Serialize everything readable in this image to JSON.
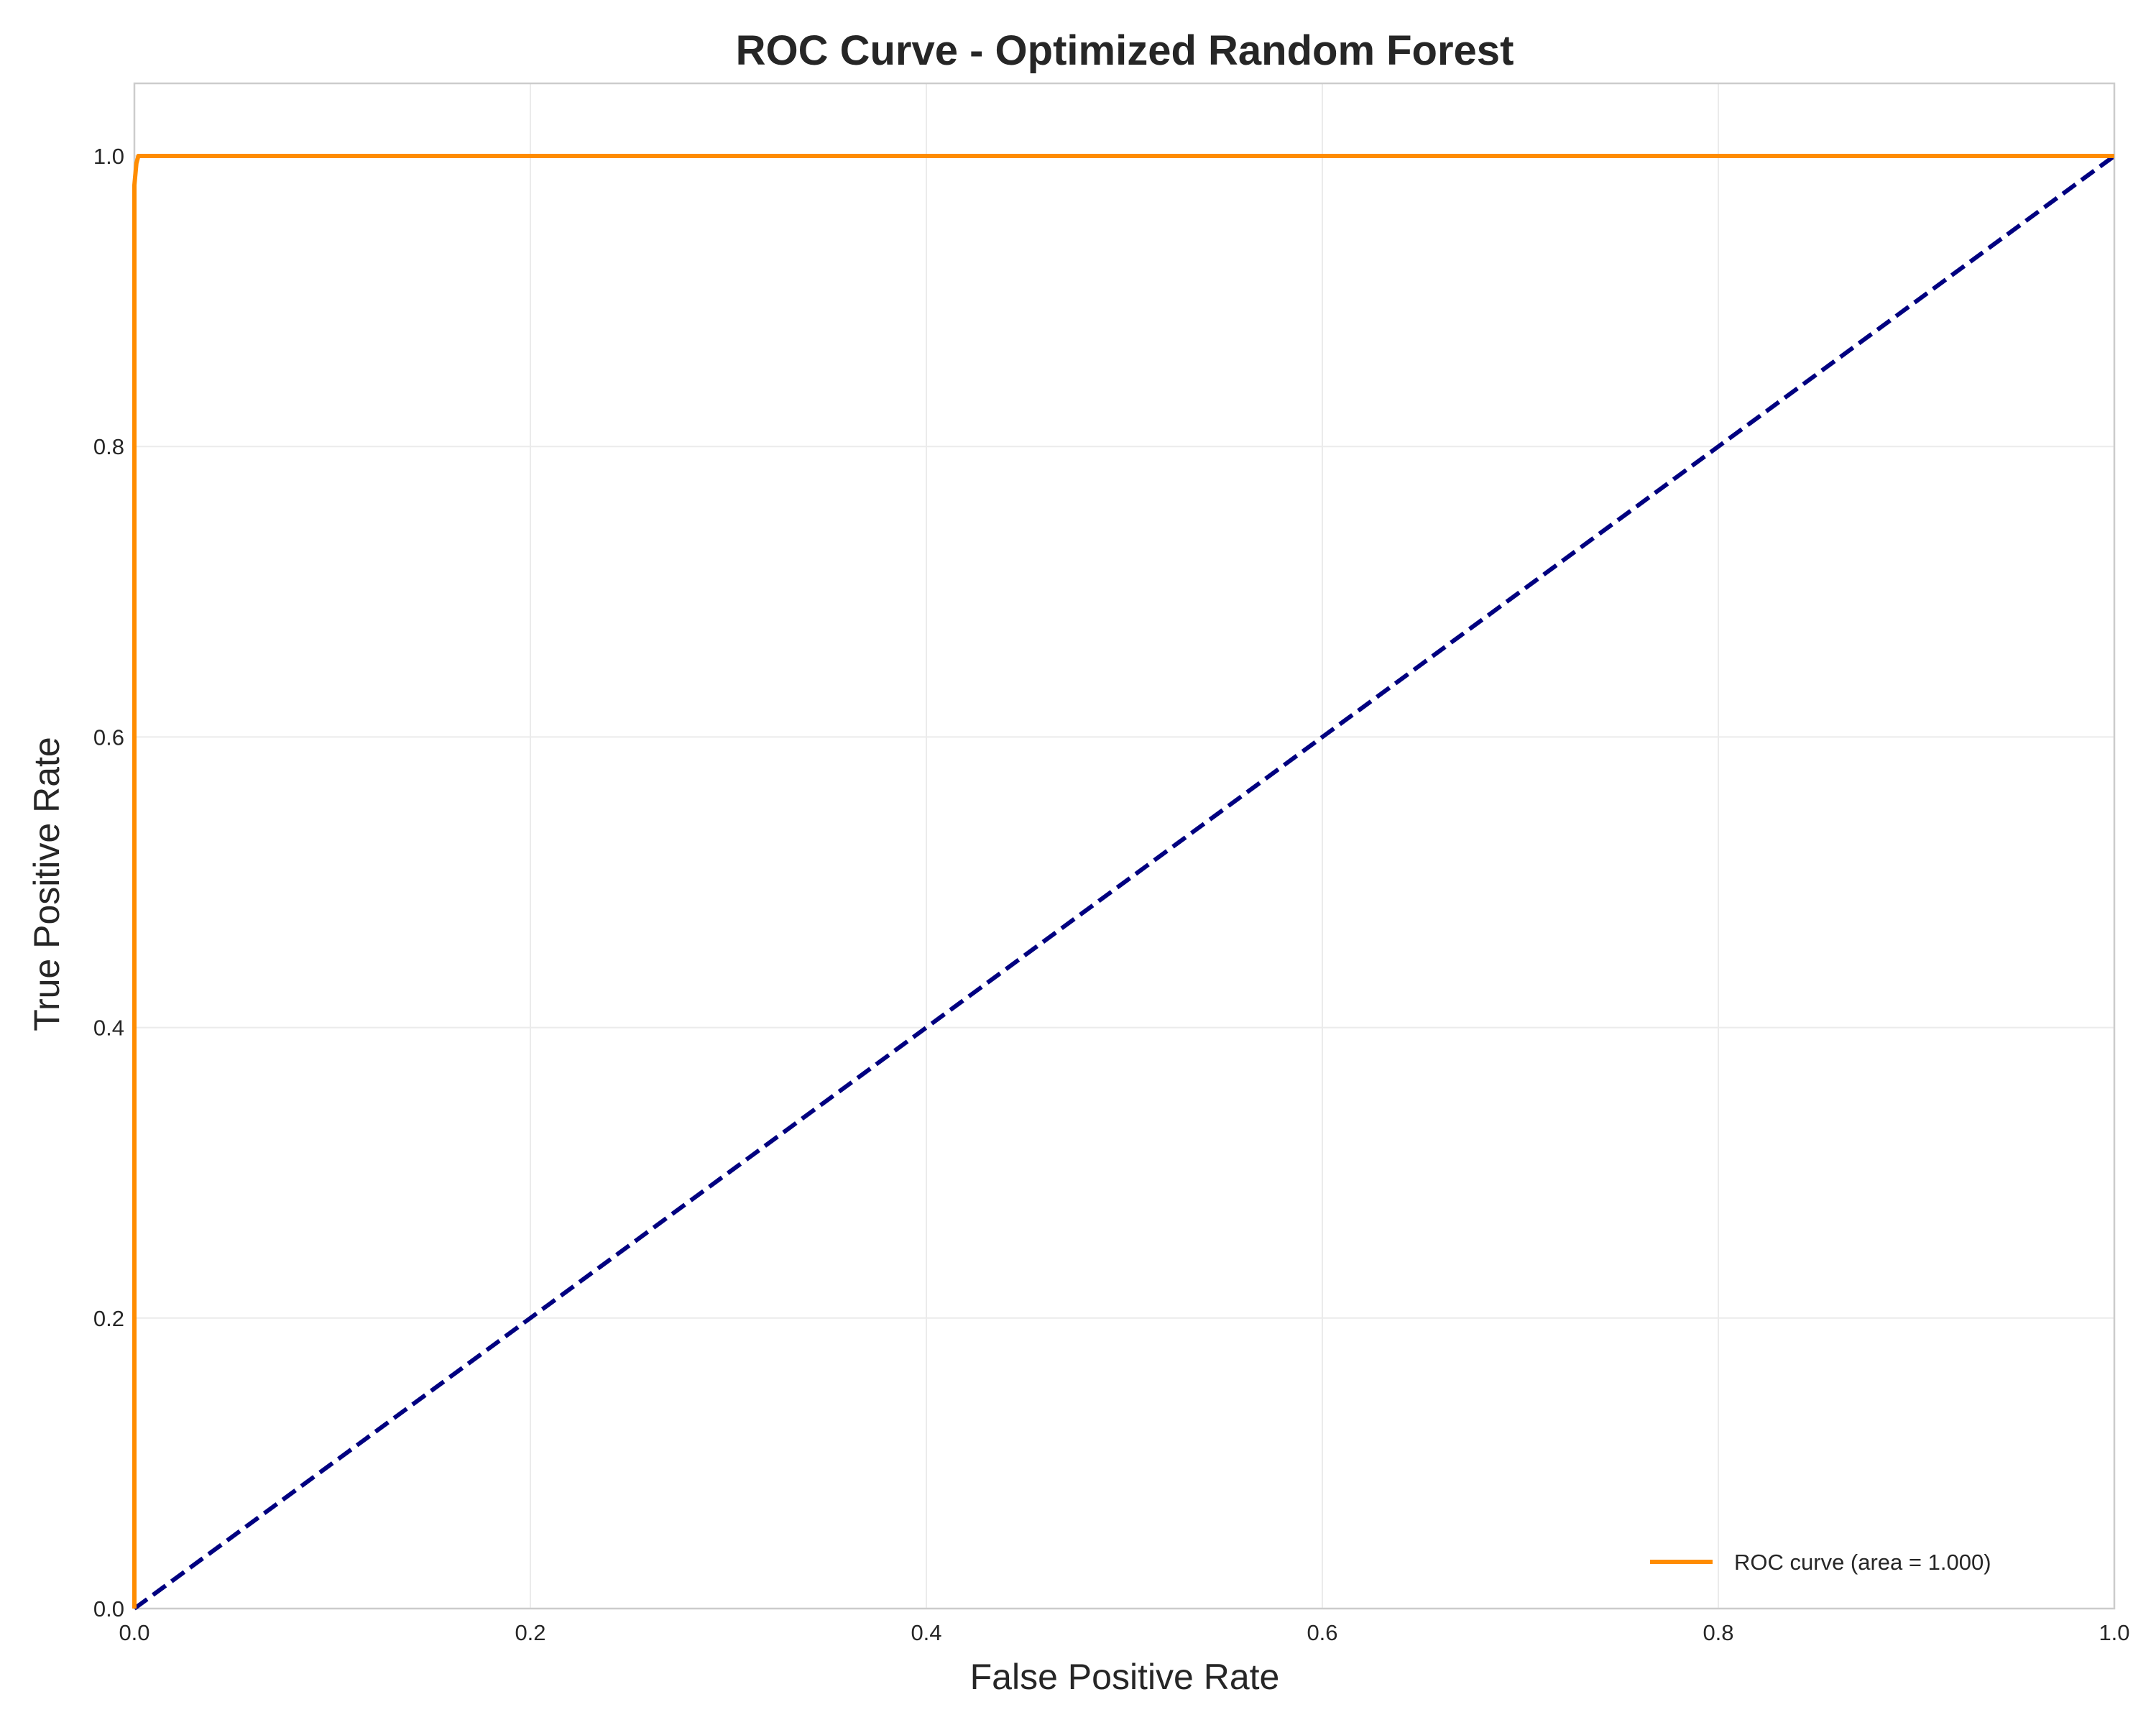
{
  "chart_data": {
    "type": "line",
    "title": "ROC Curve - Optimized Random Forest",
    "xlabel": "False Positive Rate",
    "ylabel": "True Positive Rate",
    "xlim": [
      0.0,
      1.0
    ],
    "ylim": [
      0.0,
      1.05
    ],
    "x_ticks": [
      "0.0",
      "0.2",
      "0.4",
      "0.6",
      "0.8",
      "1.0"
    ],
    "y_ticks": [
      "0.0",
      "0.2",
      "0.4",
      "0.6",
      "0.8",
      "1.0"
    ],
    "grid": true,
    "legend_position": "lower-right",
    "series": [
      {
        "name": "ROC curve (area = 1.000)",
        "color": "#ff8c00",
        "style": "solid",
        "x": [
          0.0,
          0.0,
          0.001,
          0.002,
          1.0
        ],
        "y": [
          0.0,
          0.98,
          0.995,
          1.0,
          1.0
        ]
      },
      {
        "color": "#000080",
        "style": "dashed",
        "x": [
          0.0,
          1.0
        ],
        "y": [
          0.0,
          1.0
        ]
      }
    ]
  }
}
